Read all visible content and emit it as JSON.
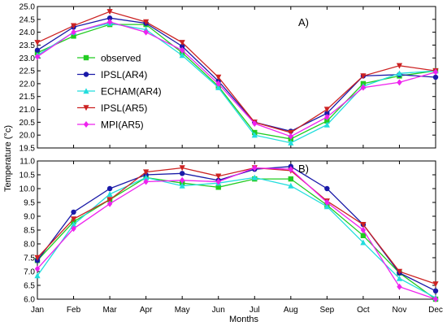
{
  "chart_data": {
    "type": "line",
    "xlabel": "Months",
    "ylabel": "Temperature (°c)",
    "categories": [
      "Jan",
      "Feb",
      "Mar",
      "Apr",
      "May",
      "Jun",
      "Jul",
      "Aug",
      "Sep",
      "Oct",
      "Nov",
      "Dec"
    ],
    "legend_position": "upper-left of top panel",
    "grid": false,
    "series_styles": [
      {
        "name": "observed",
        "color": "#22cc22",
        "marker": "square"
      },
      {
        "name": "IPSL(AR4)",
        "color": "#1a1aa8",
        "marker": "circle"
      },
      {
        "name": "ECHAM(AR4)",
        "color": "#22dddd",
        "marker": "triangle-up"
      },
      {
        "name": "IPSL(AR5)",
        "color": "#cc2222",
        "marker": "triangle-down"
      },
      {
        "name": "MPI(AR5)",
        "color": "#ee22ee",
        "marker": "diamond"
      }
    ],
    "panels": [
      {
        "label": "A)",
        "ylim": [
          19.5,
          25.0
        ],
        "yticks": [
          "19.5",
          "20.0",
          "20.5",
          "21.0",
          "21.5",
          "22.0",
          "22.5",
          "23.0",
          "23.5",
          "24.0",
          "24.5",
          "25.0"
        ],
        "series": [
          {
            "name": "observed",
            "values": [
              23.2,
              23.85,
              24.3,
              24.3,
              23.2,
              21.9,
              20.1,
              19.85,
              20.55,
              22.0,
              22.3,
              22.5
            ]
          },
          {
            "name": "IPSL(AR4)",
            "values": [
              23.3,
              24.2,
              24.55,
              24.35,
              23.45,
              22.1,
              20.5,
              20.15,
              20.85,
              22.3,
              22.35,
              22.25
            ]
          },
          {
            "name": "ECHAM(AR4)",
            "values": [
              23.1,
              24.0,
              24.35,
              24.1,
              23.1,
              21.85,
              20.0,
              19.7,
              20.4,
              21.9,
              22.4,
              22.5
            ]
          },
          {
            "name": "IPSL(AR5)",
            "values": [
              23.6,
              24.25,
              24.8,
              24.4,
              23.6,
              22.25,
              20.5,
              20.1,
              21.0,
              22.3,
              22.7,
              22.5
            ]
          },
          {
            "name": "MPI(AR5)",
            "values": [
              23.05,
              24.0,
              24.4,
              24.0,
              23.3,
              22.0,
              20.45,
              19.95,
              20.7,
              21.85,
              22.05,
              22.45
            ]
          }
        ]
      },
      {
        "label": "B)",
        "ylim": [
          6.0,
          11.0
        ],
        "yticks": [
          "6.0",
          "6.5",
          "7.0",
          "7.5",
          "8.0",
          "8.5",
          "9.0",
          "9.5",
          "10.0",
          "10.5",
          "11.0"
        ],
        "series": [
          {
            "name": "observed",
            "values": [
              7.4,
              8.8,
              9.6,
              10.4,
              10.2,
              10.05,
              10.35,
              10.35,
              9.4,
              8.3,
              6.95,
              6.0
            ]
          },
          {
            "name": "IPSL(AR4)",
            "values": [
              7.4,
              9.15,
              10.0,
              10.5,
              10.55,
              10.3,
              10.7,
              10.8,
              10.0,
              8.7,
              6.95,
              6.3
            ]
          },
          {
            "name": "ECHAM(AR4)",
            "values": [
              6.85,
              8.7,
              9.8,
              10.4,
              10.1,
              10.2,
              10.4,
              10.1,
              9.35,
              8.05,
              6.75,
              6.05
            ]
          },
          {
            "name": "IPSL(AR5)",
            "values": [
              7.5,
              8.9,
              9.6,
              10.6,
              10.75,
              10.45,
              10.75,
              10.65,
              9.55,
              8.7,
              7.0,
              6.55
            ]
          },
          {
            "name": "MPI(AR5)",
            "values": [
              7.1,
              8.55,
              9.45,
              10.25,
              10.3,
              10.25,
              10.75,
              10.7,
              9.5,
              8.5,
              6.45,
              6.0
            ]
          }
        ]
      }
    ]
  }
}
